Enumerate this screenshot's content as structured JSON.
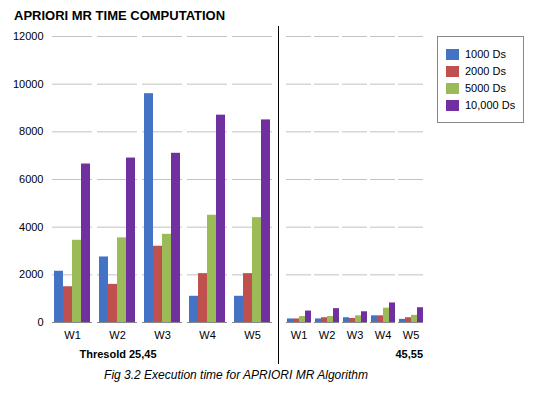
{
  "chart_data": [
    {
      "type": "bar",
      "title": "APRIORI MR TIME COMPUTATION",
      "caption": "Fig 3.2 Execution time for APRIORI MR Algorithm",
      "annotations": [
        "Thresold 25,45"
      ],
      "categories": [
        "W1",
        "W2",
        "W3",
        "W4",
        "W5"
      ],
      "series": [
        {
          "name": "1000 Ds",
          "color": "#4472C4",
          "values": [
            2150,
            2750,
            9600,
            1100,
            1100
          ]
        },
        {
          "name": "2000 Ds",
          "color": "#C0504D",
          "values": [
            1500,
            1600,
            3200,
            2050,
            2050
          ]
        },
        {
          "name": "5000 Ds",
          "color": "#9BBB59",
          "values": [
            3450,
            3550,
            3700,
            4500,
            4400
          ]
        },
        {
          "name": "10,000 Ds",
          "color": "#7030A0",
          "values": [
            6650,
            6900,
            7100,
            8700,
            8500
          ]
        }
      ],
      "ylim": [
        0,
        12000
      ],
      "yticks": [
        0,
        2000,
        4000,
        6000,
        8000,
        10000,
        12000
      ],
      "grid": true
    },
    {
      "type": "bar",
      "annotations": [
        "45,55"
      ],
      "categories": [
        "W1",
        "W2",
        "W3",
        "W4",
        "W5"
      ],
      "series": [
        {
          "name": "1000 Ds",
          "color": "#4472C4",
          "values": [
            150,
            150,
            200,
            280,
            130
          ]
        },
        {
          "name": "2000 Ds",
          "color": "#C0504D",
          "values": [
            150,
            200,
            170,
            280,
            200
          ]
        },
        {
          "name": "5000 Ds",
          "color": "#9BBB59",
          "values": [
            250,
            250,
            280,
            600,
            300
          ]
        },
        {
          "name": "10,000 Ds",
          "color": "#7030A0",
          "values": [
            480,
            580,
            450,
            820,
            620
          ]
        }
      ],
      "ylim": [
        0,
        12000
      ],
      "yticks": [
        0,
        2000,
        4000,
        6000,
        8000,
        10000,
        12000
      ],
      "grid": true,
      "tick_labels": "x",
      "legend": "right"
    }
  ]
}
